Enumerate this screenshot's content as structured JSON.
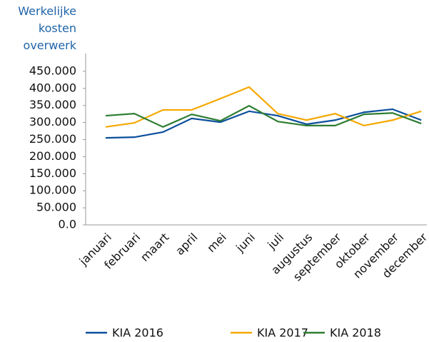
{
  "chart_data": {
    "type": "line",
    "title": "Werkelijke kosten overwerk",
    "categories": [
      "januari",
      "februari",
      "maart",
      "april",
      "mei",
      "juni",
      "juli",
      "augustus",
      "september",
      "oktober",
      "november",
      "december"
    ],
    "series": [
      {
        "name": "KIA 2016",
        "color": "#0b4f9c",
        "values": [
          255000,
          257000,
          272000,
          312000,
          301000,
          333000,
          320000,
          295000,
          307000,
          330000,
          339000,
          307000
        ]
      },
      {
        "name": "KIA 2017",
        "color": "#f5a800",
        "values": [
          287000,
          299000,
          337000,
          337000,
          370000,
          404000,
          326000,
          307000,
          326000,
          291000,
          307000,
          333000
        ]
      },
      {
        "name": "KIA 2018",
        "color": "#2e7d32",
        "values": [
          320000,
          326000,
          287000,
          324000,
          305000,
          349000,
          303000,
          291000,
          291000,
          324000,
          328000,
          297000
        ]
      }
    ],
    "ylim": [
      0,
      500000
    ],
    "yticks": [
      {
        "value": 0,
        "label": "0.0"
      },
      {
        "value": 50000,
        "label": "50.000"
      },
      {
        "value": 100000,
        "label": "100.000"
      },
      {
        "value": 150000,
        "label": "150.000"
      },
      {
        "value": 200000,
        "label": "200.000"
      },
      {
        "value": 250000,
        "label": "250.000"
      },
      {
        "value": 300000,
        "label": "300.000"
      },
      {
        "value": 350000,
        "label": "350.000"
      },
      {
        "value": 400000,
        "label": "400.000"
      },
      {
        "value": 450000,
        "label": "450.000"
      }
    ],
    "legend": "bottom"
  }
}
